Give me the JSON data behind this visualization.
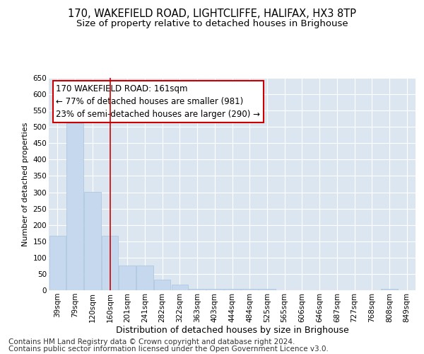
{
  "title": "170, WAKEFIELD ROAD, LIGHTCLIFFE, HALIFAX, HX3 8TP",
  "subtitle": "Size of property relative to detached houses in Brighouse",
  "xlabel": "Distribution of detached houses by size in Brighouse",
  "ylabel": "Number of detached properties",
  "categories": [
    "39sqm",
    "79sqm",
    "120sqm",
    "160sqm",
    "201sqm",
    "241sqm",
    "282sqm",
    "322sqm",
    "363sqm",
    "403sqm",
    "444sqm",
    "484sqm",
    "525sqm",
    "565sqm",
    "606sqm",
    "646sqm",
    "687sqm",
    "727sqm",
    "768sqm",
    "808sqm",
    "849sqm"
  ],
  "values": [
    167,
    511,
    302,
    167,
    76,
    76,
    33,
    18,
    5,
    5,
    5,
    5,
    5,
    0,
    0,
    0,
    0,
    0,
    0,
    5,
    0
  ],
  "bar_color": "#c5d8ed",
  "bar_edgecolor": "#a8c4de",
  "vline_x_index": 3,
  "vline_color": "#cc0000",
  "annotation_text": "170 WAKEFIELD ROAD: 161sqm\n← 77% of detached houses are smaller (981)\n23% of semi-detached houses are larger (290) →",
  "annotation_box_color": "#ffffff",
  "annotation_box_edgecolor": "#cc0000",
  "ylim": [
    0,
    650
  ],
  "yticks": [
    0,
    50,
    100,
    150,
    200,
    250,
    300,
    350,
    400,
    450,
    500,
    550,
    600,
    650
  ],
  "footer_line1": "Contains HM Land Registry data © Crown copyright and database right 2024.",
  "footer_line2": "Contains public sector information licensed under the Open Government Licence v3.0.",
  "grid_color": "#ffffff",
  "bg_color": "#dce6f1",
  "title_fontsize": 10.5,
  "subtitle_fontsize": 9.5,
  "annotation_fontsize": 8.5,
  "footer_fontsize": 7.5,
  "tick_fontsize": 7.5,
  "ylabel_fontsize": 8,
  "xlabel_fontsize": 9
}
